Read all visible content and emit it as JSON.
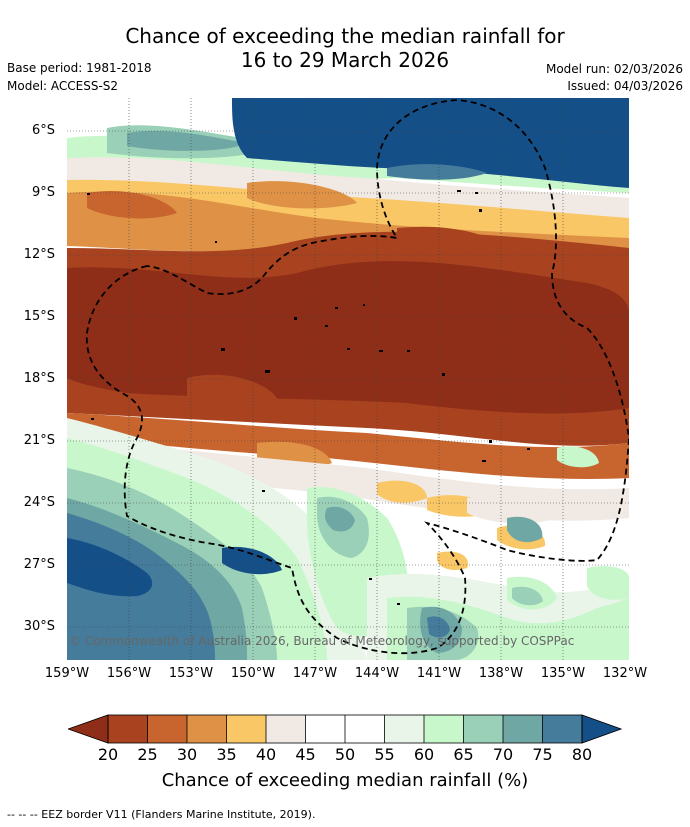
{
  "title": {
    "line1": "Chance of exceeding the median rainfall for",
    "line2": "16 to 29 March 2026"
  },
  "header": {
    "base_period": "Base period: 1981-2018",
    "model": "Model: ACCESS-S2",
    "model_run": "Model run: 02/03/2026",
    "issued": "Issued: 04/03/2026"
  },
  "map": {
    "copyright": "© Commonwealth of Australia 2026, Bureau of Meteorology, supported by COSPPac",
    "lat_labels": [
      "6°S",
      "9°S",
      "12°S",
      "15°S",
      "18°S",
      "21°S",
      "24°S",
      "27°S",
      "30°S"
    ],
    "lon_labels": [
      "159°W",
      "156°W",
      "153°W",
      "150°W",
      "147°W",
      "144°W",
      "141°W",
      "138°W",
      "135°W",
      "132°W"
    ],
    "colors": {
      "c_lt20": "#8e2d18",
      "c20": "#a8421f",
      "c25": "#c8642e",
      "c30": "#df9245",
      "c35": "#f9c765",
      "c40": "#f0e9e4",
      "c45": "#ffffff",
      "c50": "#ffffff",
      "c55": "#e8f5e8",
      "c60": "#c9f7cc",
      "c65": "#9ad0b7",
      "c70": "#6fa7a4",
      "c75": "#457c9b",
      "c_gt80": "#154f88"
    }
  },
  "colorbar": {
    "ticks": [
      "20",
      "25",
      "30",
      "35",
      "40",
      "45",
      "50",
      "55",
      "60",
      "65",
      "70",
      "75",
      "80"
    ],
    "label": "Chance of exceeding median rainfall (%)"
  },
  "footnote": "--  --  -- EEZ border V11 (Flanders Marine Institute, 2019)."
}
